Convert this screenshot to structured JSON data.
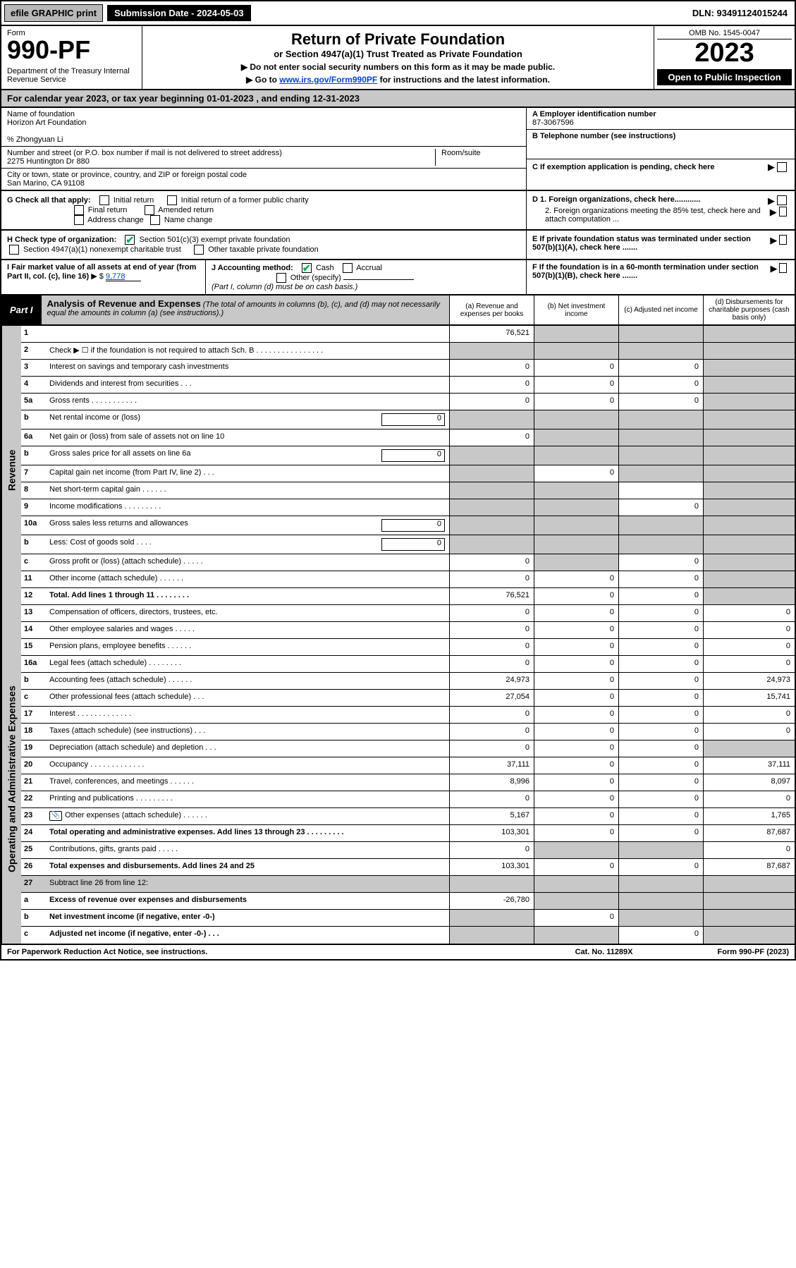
{
  "top": {
    "efile": "efile GRAPHIC print",
    "submission": "Submission Date - 2024-05-03",
    "dln": "DLN: 93491124015244"
  },
  "header": {
    "form": "Form",
    "formno": "990-PF",
    "dept": "Department of the Treasury\nInternal Revenue Service",
    "title": "Return of Private Foundation",
    "subtitle": "or Section 4947(a)(1) Trust Treated as Private Foundation",
    "note1": "▶ Do not enter social security numbers on this form as it may be made public.",
    "note2_prefix": "▶ Go to ",
    "note2_link": "www.irs.gov/Form990PF",
    "note2_suffix": " for instructions and the latest information.",
    "omb": "OMB No. 1545-0047",
    "year": "2023",
    "open": "Open to Public Inspection"
  },
  "calendar": "For calendar year 2023, or tax year beginning 01-01-2023                              , and ending 12-31-2023",
  "info": {
    "name_label": "Name of foundation",
    "name": "Horizon Art Foundation",
    "care_of": "% Zhongyuan Li",
    "addr_label": "Number and street (or P.O. box number if mail is not delivered to street address)",
    "addr": "2275 Huntington Dr 880",
    "room_label": "Room/suite",
    "city_label": "City or town, state or province, country, and ZIP or foreign postal code",
    "city": "San Marino, CA  91108",
    "A_label": "A Employer identification number",
    "A_val": "87-3067596",
    "B_label": "B Telephone number (see instructions)",
    "C_label": "C If exemption application is pending, check here",
    "D1": "D 1. Foreign organizations, check here............",
    "D2": "2. Foreign organizations meeting the 85% test, check here and attach computation ...",
    "E": "E  If private foundation status was terminated under section 507(b)(1)(A), check here .......",
    "F": "F  If the foundation is in a 60-month termination under section 507(b)(1)(B), check here .......",
    "G": "G Check all that apply:",
    "G_opts": [
      "Initial return",
      "Final return",
      "Address change",
      "Initial return of a former public charity",
      "Amended return",
      "Name change"
    ],
    "H": "H Check type of organization:",
    "H1": "Section 501(c)(3) exempt private foundation",
    "H2": "Section 4947(a)(1) nonexempt charitable trust",
    "H3": "Other taxable private foundation",
    "I_label": "I Fair market value of all assets at end of year (from Part II, col. (c), line 16)",
    "I_val": "9,778",
    "J": "J Accounting method:",
    "J_opts": [
      "Cash",
      "Accrual",
      "Other (specify)"
    ],
    "J_note": "(Part I, column (d) must be on cash basis.)"
  },
  "part1": {
    "label": "Part I",
    "title": "Analysis of Revenue and Expenses",
    "desc": "(The total of amounts in columns (b), (c), and (d) may not necessarily equal the amounts in column (a) (see instructions).)",
    "cols": {
      "a": "(a)  Revenue and expenses per books",
      "b": "(b)  Net investment income",
      "c": "(c)  Adjusted net income",
      "d": "(d)  Disbursements for charitable purposes (cash basis only)"
    }
  },
  "sides": {
    "revenue": "Revenue",
    "expenses": "Operating and Administrative Expenses"
  },
  "rows": [
    {
      "n": "1",
      "d": "",
      "a": "76,521",
      "b": "",
      "c": "",
      "grey": [
        "b",
        "c",
        "d"
      ]
    },
    {
      "n": "2",
      "d": "Check ▶ ☐ if the foundation is not required to attach Sch. B    .  .  .  .  .  .  .  .  .  .  .  .  .  .  .  .",
      "grey": [
        "a",
        "b",
        "c",
        "d"
      ]
    },
    {
      "n": "3",
      "d": "Interest on savings and temporary cash investments",
      "a": "0",
      "b": "0",
      "c": "0",
      "grey": [
        "d"
      ]
    },
    {
      "n": "4",
      "d": "Dividends and interest from securities    .  .  .",
      "a": "0",
      "b": "0",
      "c": "0",
      "grey": [
        "d"
      ]
    },
    {
      "n": "5a",
      "d": "Gross rents    .  .  .  .  .  .  .  .  .  .  .",
      "a": "0",
      "b": "0",
      "c": "0",
      "grey": [
        "d"
      ]
    },
    {
      "n": "b",
      "d": "Net rental income or (loss)",
      "inline": "0",
      "grey": [
        "a",
        "b",
        "c",
        "d"
      ]
    },
    {
      "n": "6a",
      "d": "Net gain or (loss) from sale of assets not on line 10",
      "a": "0",
      "grey": [
        "b",
        "c",
        "d"
      ]
    },
    {
      "n": "b",
      "d": "Gross sales price for all assets on line 6a",
      "inline": "0",
      "grey": [
        "a",
        "b",
        "c",
        "d"
      ]
    },
    {
      "n": "7",
      "d": "Capital gain net income (from Part IV, line 2)    .  .  .",
      "b": "0",
      "grey": [
        "a",
        "c",
        "d"
      ]
    },
    {
      "n": "8",
      "d": "Net short-term capital gain    .  .  .  .  .  .",
      "grey": [
        "a",
        "b",
        "d"
      ]
    },
    {
      "n": "9",
      "d": "Income modifications   .  .  .  .  .  .  .  .  .",
      "c": "0",
      "grey": [
        "a",
        "b",
        "d"
      ]
    },
    {
      "n": "10a",
      "d": "Gross sales less returns and allowances",
      "inline": "0",
      "grey": [
        "a",
        "b",
        "c",
        "d"
      ]
    },
    {
      "n": "b",
      "d": "Less: Cost of goods sold    .  .  .  .",
      "inline": "0",
      "grey": [
        "a",
        "b",
        "c",
        "d"
      ]
    },
    {
      "n": "c",
      "d": "Gross profit or (loss) (attach schedule)    .  .  .  .  .",
      "a": "0",
      "c": "0",
      "grey": [
        "b",
        "d"
      ]
    },
    {
      "n": "11",
      "d": "Other income (attach schedule)    .  .  .  .  .  .",
      "a": "0",
      "b": "0",
      "c": "0",
      "grey": [
        "d"
      ]
    },
    {
      "n": "12",
      "d": "Total. Add lines 1 through 11    .  .  .  .  .  .  .  .",
      "a": "76,521",
      "b": "0",
      "c": "0",
      "bold": true,
      "grey": [
        "d"
      ]
    },
    {
      "n": "13",
      "d": "Compensation of officers, directors, trustees, etc.",
      "a": "0",
      "b": "0",
      "c": "0",
      "dd": "0"
    },
    {
      "n": "14",
      "d": "Other employee salaries and wages    .  .  .  .  .",
      "a": "0",
      "b": "0",
      "c": "0",
      "dd": "0"
    },
    {
      "n": "15",
      "d": "Pension plans, employee benefits    .  .  .  .  .  .",
      "a": "0",
      "b": "0",
      "c": "0",
      "dd": "0"
    },
    {
      "n": "16a",
      "d": "Legal fees (attach schedule)   .  .  .  .  .  .  .  .",
      "a": "0",
      "b": "0",
      "c": "0",
      "dd": "0"
    },
    {
      "n": "b",
      "d": "Accounting fees (attach schedule)   .  .  .  .  .  .",
      "a": "24,973",
      "b": "0",
      "c": "0",
      "dd": "24,973"
    },
    {
      "n": "c",
      "d": "Other professional fees (attach schedule)    .  .  .",
      "a": "27,054",
      "b": "0",
      "c": "0",
      "dd": "15,741"
    },
    {
      "n": "17",
      "d": "Interest   .  .  .  .  .  .  .  .  .  .  .  .  .",
      "a": "0",
      "b": "0",
      "c": "0",
      "dd": "0"
    },
    {
      "n": "18",
      "d": "Taxes (attach schedule) (see instructions)    .  .  .",
      "a": "0",
      "b": "0",
      "c": "0",
      "dd": "0"
    },
    {
      "n": "19",
      "d": "Depreciation (attach schedule) and depletion    .  .  .",
      "a": "0",
      "b": "0",
      "c": "0",
      "grey": [
        "d"
      ]
    },
    {
      "n": "20",
      "d": "Occupancy   .  .  .  .  .  .  .  .  .  .  .  .  .",
      "a": "37,111",
      "b": "0",
      "c": "0",
      "dd": "37,111"
    },
    {
      "n": "21",
      "d": "Travel, conferences, and meetings   .  .  .  .  .  .",
      "a": "8,996",
      "b": "0",
      "c": "0",
      "dd": "8,097"
    },
    {
      "n": "22",
      "d": "Printing and publications   .  .  .  .  .  .  .  .  .",
      "a": "0",
      "b": "0",
      "c": "0",
      "dd": "0"
    },
    {
      "n": "23",
      "d": "Other expenses (attach schedule)   .  .  .  .  .  .",
      "a": "5,167",
      "b": "0",
      "c": "0",
      "dd": "1,765",
      "attach": true
    },
    {
      "n": "24",
      "d": "Total operating and administrative expenses. Add lines 13 through 23    .  .  .  .  .  .  .  .  .",
      "a": "103,301",
      "b": "0",
      "c": "0",
      "dd": "87,687",
      "bold": true
    },
    {
      "n": "25",
      "d": "Contributions, gifts, grants paid    .  .  .  .  .",
      "a": "0",
      "dd": "0",
      "grey": [
        "b",
        "c"
      ]
    },
    {
      "n": "26",
      "d": "Total expenses and disbursements. Add lines 24 and 25",
      "a": "103,301",
      "b": "0",
      "c": "0",
      "dd": "87,687",
      "bold": true
    },
    {
      "n": "27",
      "d": "Subtract line 26 from line 12:",
      "grey": [
        "a",
        "b",
        "c",
        "d"
      ],
      "bg": "#C8C8C8"
    },
    {
      "n": "a",
      "d": "Excess of revenue over expenses and disbursements",
      "a": "-26,780",
      "bold": true,
      "grey": [
        "b",
        "c",
        "d"
      ]
    },
    {
      "n": "b",
      "d": "Net investment income (if negative, enter -0-)",
      "b": "0",
      "bold": true,
      "grey": [
        "a",
        "c",
        "d"
      ]
    },
    {
      "n": "c",
      "d": "Adjusted net income (if negative, enter -0-)    .  .  .",
      "c": "0",
      "bold": true,
      "grey": [
        "a",
        "b",
        "d"
      ]
    }
  ],
  "footer": {
    "left": "For Paperwork Reduction Act Notice, see instructions.",
    "center": "Cat. No. 11289X",
    "right": "Form 990-PF (2023)"
  }
}
